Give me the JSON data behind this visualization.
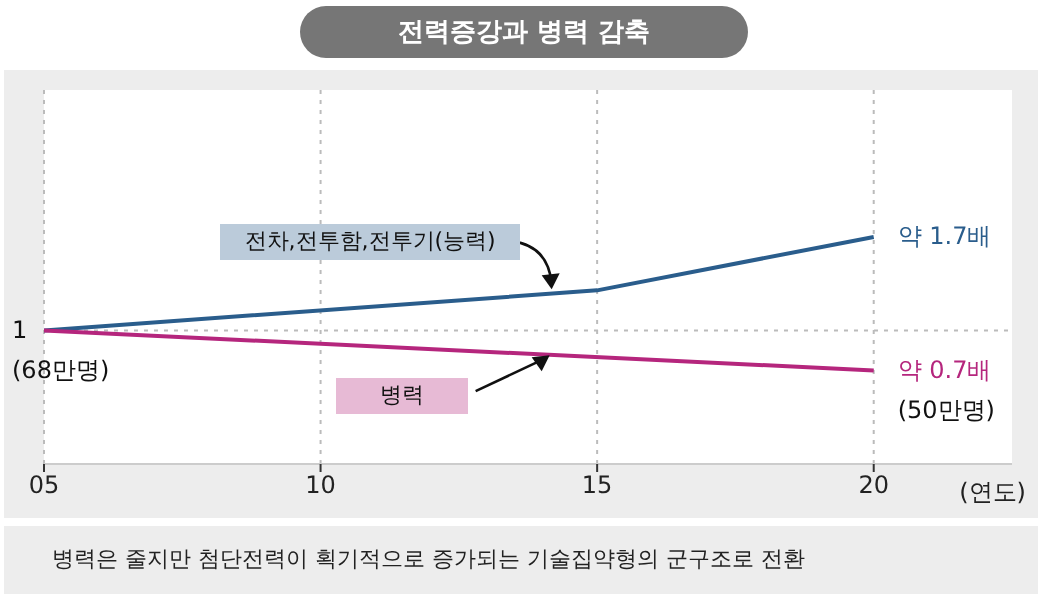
{
  "chart_data": {
    "type": "line",
    "title": "전력증강과 병력 감축",
    "xlabel": "(연도)",
    "x": [
      2005,
      2015,
      2020
    ],
    "series": [
      {
        "name": "전차,전투함,전투기(능력)",
        "color": "#2a5d8c",
        "values": [
          1,
          1.3,
          1.7
        ],
        "value_labels": [
          "1",
          null,
          "약 1.7배"
        ]
      },
      {
        "name": "병력",
        "color": "#b5267d",
        "x": [
          2005,
          2020
        ],
        "values": [
          1,
          0.7
        ],
        "value_labels": [
          null,
          "약 0.7배"
        ]
      }
    ],
    "xlim": [
      2005,
      2022.5
    ],
    "xticks": [
      {
        "value": 2005,
        "label": "05"
      },
      {
        "value": 2010,
        "label": "10"
      },
      {
        "value": 2015,
        "label": "15"
      },
      {
        "value": 2020,
        "label": "20"
      }
    ],
    "ylim": [
      0,
      2.8
    ],
    "tick_labels": "x",
    "grid": "x",
    "legend": false,
    "marker": "none",
    "line_style": "solid",
    "ref_lines": [
      {
        "axis": "y",
        "value": 1,
        "line_style": "dotted"
      }
    ],
    "annotations": [
      {
        "text": "(68만명)",
        "x": 2005,
        "y": 1
      },
      {
        "text": "(50만명)",
        "x": 2020,
        "y": 0.7
      },
      "병력은 줄지만 첨단전력이 획기적으로 증가되는 기술집약형의 군구조로 전환"
    ]
  }
}
